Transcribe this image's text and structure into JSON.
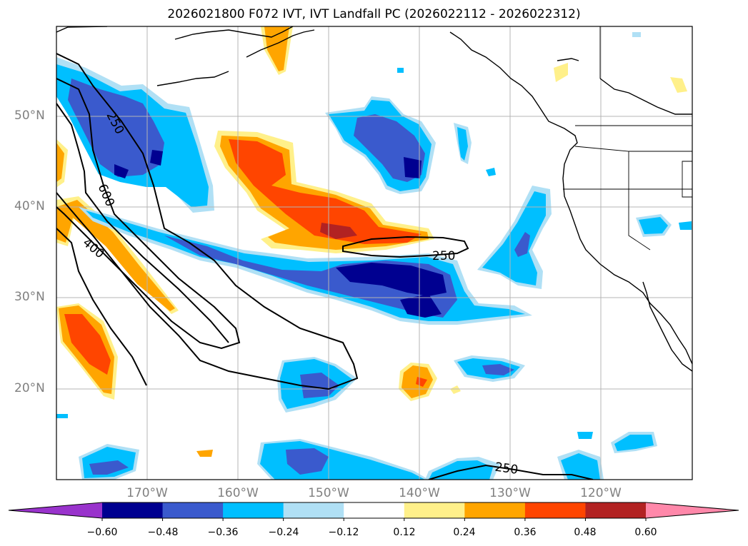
{
  "title": "2026021800 F072 IVT, IVT Landfall PC (2026022112 - 2026022312)",
  "lat_labels": [
    "50°N",
    "40°N",
    "30°N",
    "20°N"
  ],
  "lon_labels": [
    "170°W",
    "160°W",
    "150°W",
    "140°W",
    "130°W",
    "120°W"
  ],
  "contour_labels": [
    "250",
    "600",
    "400",
    "250",
    "250"
  ],
  "colorbar": {
    "ticks": [
      "−0.60",
      "−0.48",
      "−0.36",
      "−0.24",
      "−0.12",
      "0.12",
      "0.24",
      "0.36",
      "0.48",
      "0.60"
    ],
    "colors": {
      "under": "#9933cc",
      "n060_048": "#000090",
      "n048_036": "#3a5acd",
      "n036_024": "#00bfff",
      "n024_012": "#b0e0f5",
      "n012_012": "#ffffff",
      "p012_024": "#fff08a",
      "p024_036": "#ffa500",
      "p036_048": "#ff4500",
      "p048_060": "#b22222",
      "over": "#ff88aa"
    }
  }
}
